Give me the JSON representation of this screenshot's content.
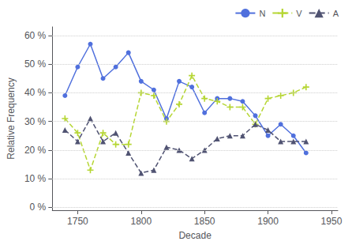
{
  "chart_data": {
    "type": "line",
    "x": [
      1740,
      1750,
      1760,
      1770,
      1780,
      1790,
      1800,
      1810,
      1820,
      1830,
      1840,
      1850,
      1860,
      1870,
      1880,
      1890,
      1900,
      1910,
      1920,
      1930
    ],
    "series": [
      {
        "name": "N",
        "values": [
          39,
          49,
          57,
          45,
          49,
          54,
          44,
          41,
          31,
          44,
          42,
          33,
          38,
          38,
          37,
          32,
          25,
          29,
          25,
          19
        ],
        "marker": "circle",
        "line_style": "solid"
      },
      {
        "name": "V",
        "values": [
          31,
          26,
          13,
          26,
          22,
          22,
          40,
          39,
          30,
          36,
          46,
          38,
          37,
          35,
          35,
          29,
          38,
          39,
          40,
          42
        ],
        "marker": "plus",
        "line_style": "dashed"
      },
      {
        "name": "A",
        "values": [
          27,
          23,
          31,
          23,
          26,
          19,
          12,
          13,
          21,
          20,
          17,
          20,
          24,
          25,
          25,
          29,
          27,
          23,
          23,
          23
        ],
        "marker": "triangle",
        "line_style": "dashed"
      }
    ],
    "xlabel": "Decade",
    "ylabel": "Relative Frequency",
    "xlim": [
      1730,
      1955
    ],
    "xticks": [
      1750,
      1800,
      1850,
      1900,
      1950
    ],
    "ylim": [
      -1,
      63
    ],
    "yticks": [
      {
        "value": 0,
        "label": "0 %"
      },
      {
        "value": 10,
        "label": "10 %"
      },
      {
        "value": 20,
        "label": "20 %"
      },
      {
        "value": 30,
        "label": "30 %"
      },
      {
        "value": 40,
        "label": "40 %"
      },
      {
        "value": 50,
        "label": "50 %"
      },
      {
        "value": 60,
        "label": "60 %"
      }
    ],
    "grid": true,
    "legend": "upper right"
  }
}
